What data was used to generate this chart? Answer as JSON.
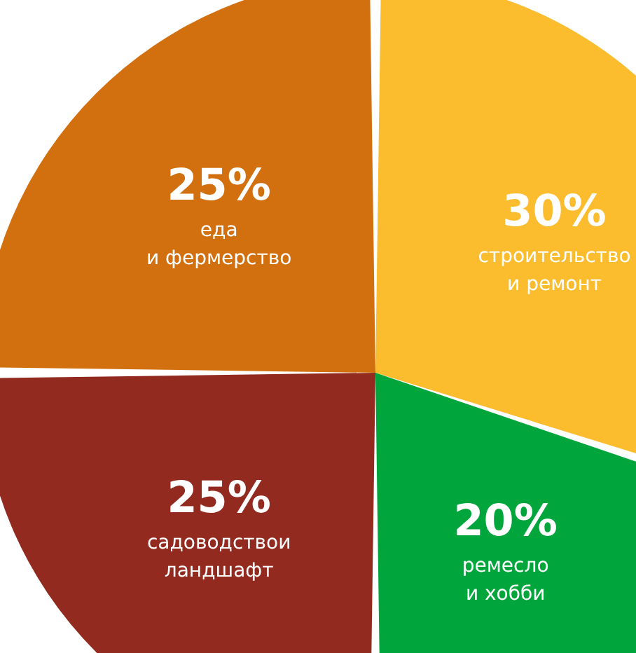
{
  "chart_data": {
    "type": "pie",
    "categories": [
      "строительство и ремонт",
      "ремесло и хобби",
      "садоводствои ландшафт",
      "еда и фермерство"
    ],
    "values": [
      30,
      20,
      25,
      25
    ],
    "colors": [
      "#fbbc2d",
      "#00a63c",
      "#922a1f",
      "#d2700f"
    ],
    "value_labels": [
      "30%",
      "20%",
      "25%",
      "25%"
    ]
  }
}
